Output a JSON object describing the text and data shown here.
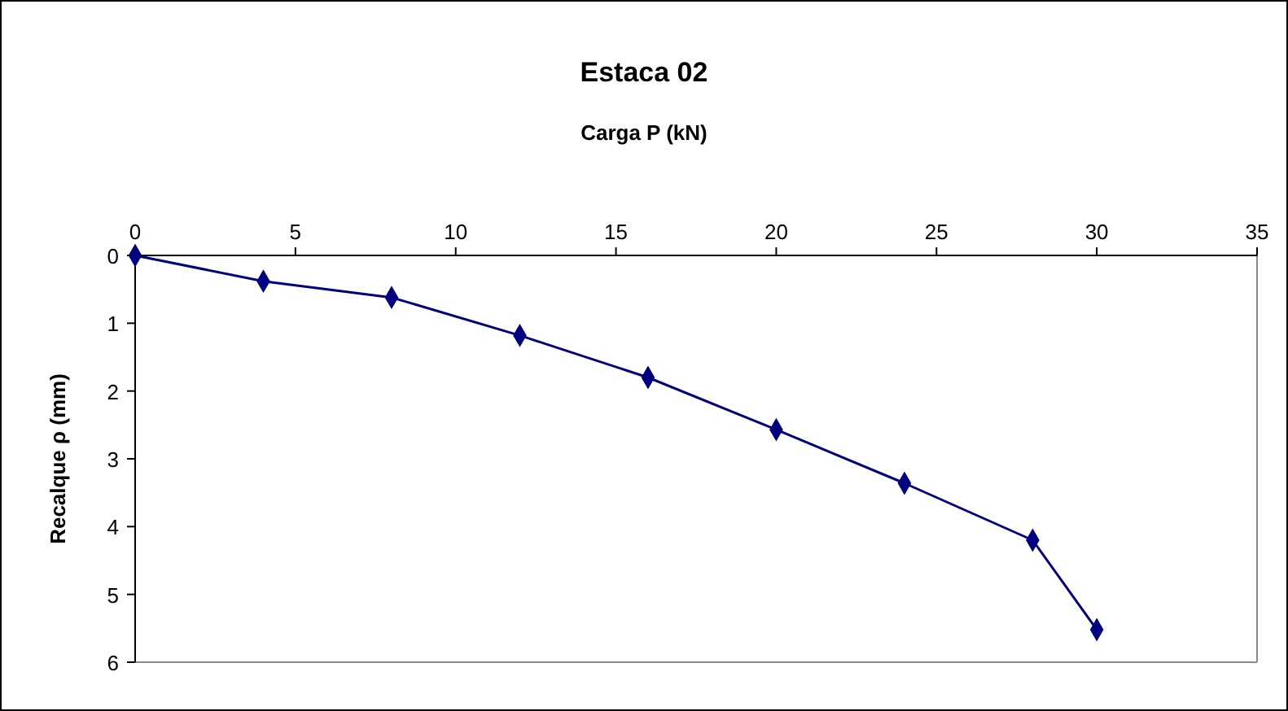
{
  "chart_data": {
    "type": "line",
    "title": "Estaca 02",
    "xlabel": "Carga P (kN)",
    "ylabel": "Recalque ρ (mm)",
    "x": [
      0,
      4,
      8,
      12,
      16,
      20,
      24,
      28,
      30
    ],
    "series": [
      {
        "color": "#000080",
        "values": [
          0,
          0.38,
          0.62,
          1.18,
          1.8,
          2.57,
          3.36,
          4.2,
          5.52
        ]
      }
    ],
    "xlim": [
      0,
      35
    ],
    "xticks": [
      0,
      5,
      10,
      15,
      20,
      25,
      30,
      35
    ],
    "ylim": [
      6,
      0
    ],
    "yticks": [
      0,
      1,
      2,
      3,
      4,
      5,
      6
    ],
    "grid": false,
    "marker": "diamond",
    "line_style": "solid"
  }
}
